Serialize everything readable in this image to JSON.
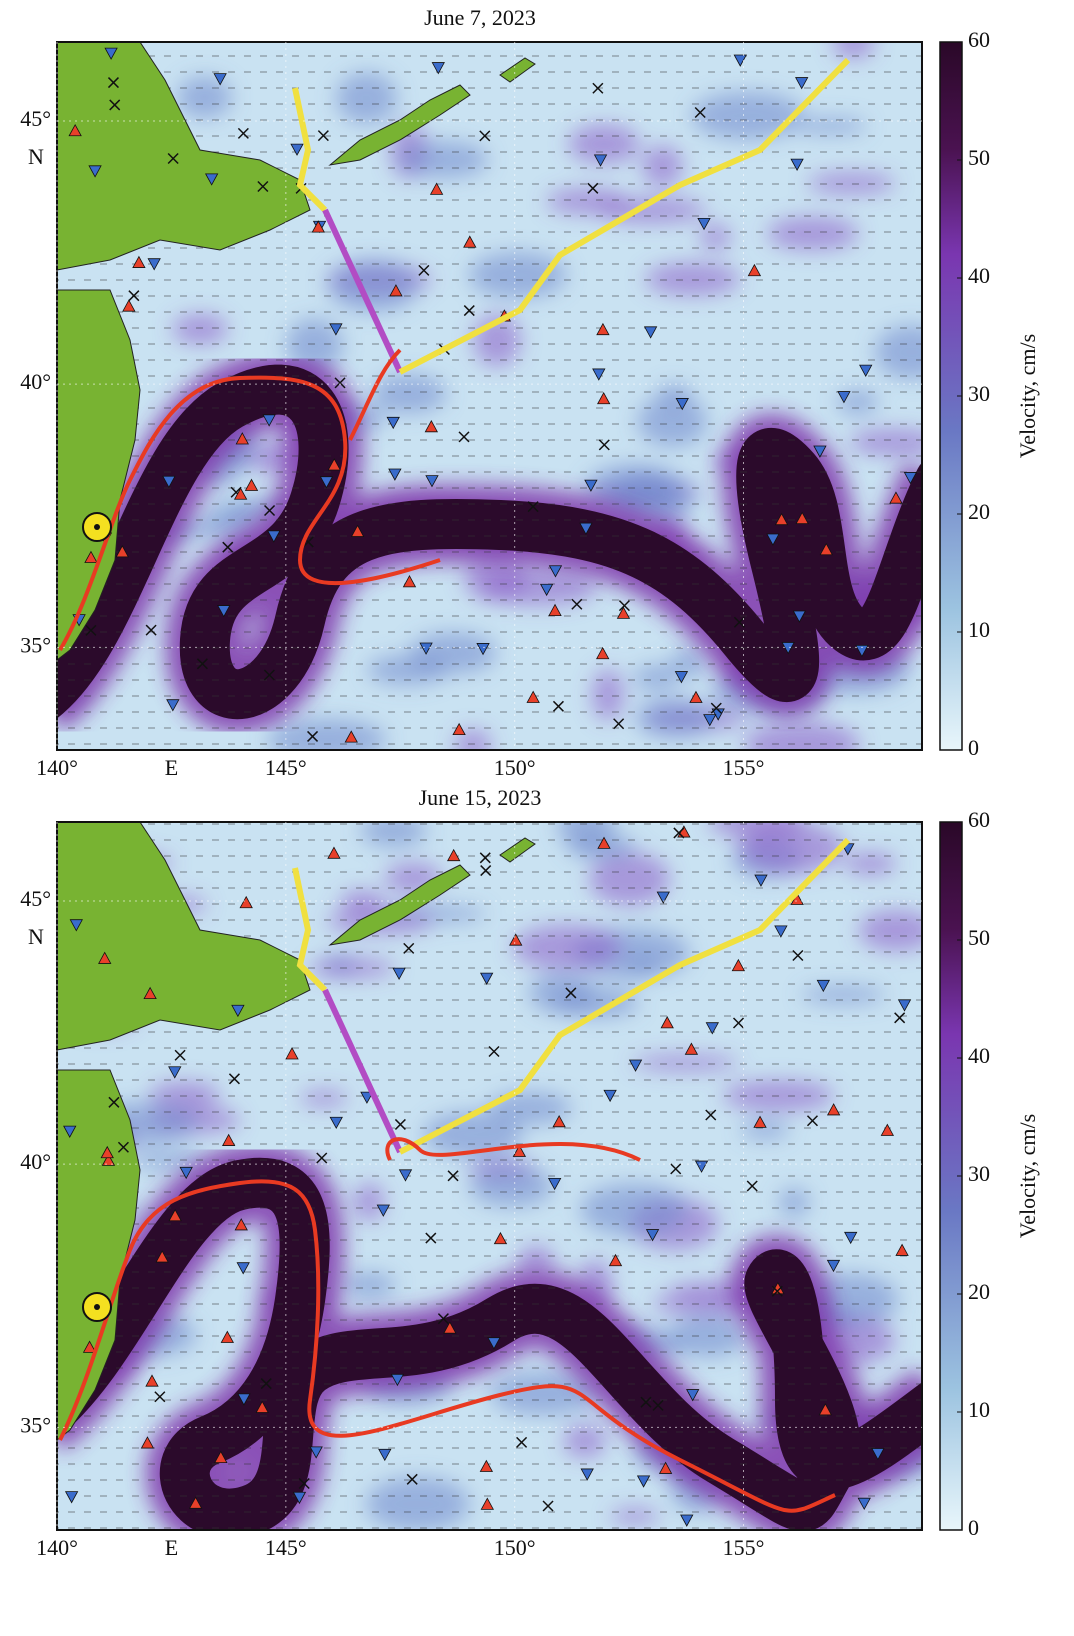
{
  "panels": [
    {
      "title": "June 7, 2023",
      "xlim": [
        140,
        158.9
      ],
      "ylim": [
        33.05,
        46.5
      ],
      "xticks": [
        {
          "value": 140,
          "label": "140°"
        },
        {
          "value": 145,
          "label": "145°"
        },
        {
          "value": 150,
          "label": "150°"
        },
        {
          "value": 155,
          "label": "155°"
        }
      ],
      "yticks": [
        {
          "value": 35,
          "label": "35°"
        },
        {
          "value": 40,
          "label": "40°"
        },
        {
          "value": 45,
          "label": "45°"
        }
      ],
      "x_unit": "E",
      "y_unit": "N",
      "colorbar": {
        "label": "Velocity, cm/s",
        "clim": [
          0,
          60
        ],
        "ticks": [
          0,
          10,
          20,
          30,
          40,
          50,
          60
        ]
      }
    },
    {
      "title": "June 15, 2023",
      "xlim": [
        140,
        158.9
      ],
      "ylim": [
        33.05,
        46.5
      ],
      "xticks": [
        {
          "value": 140,
          "label": "140°"
        },
        {
          "value": 145,
          "label": "145°"
        },
        {
          "value": 150,
          "label": "150°"
        },
        {
          "value": 155,
          "label": "155°"
        }
      ],
      "yticks": [
        {
          "value": 35,
          "label": "35°"
        },
        {
          "value": 40,
          "label": "40°"
        },
        {
          "value": 45,
          "label": "45°"
        }
      ],
      "x_unit": "E",
      "y_unit": "N",
      "colorbar": {
        "label": "Velocity, cm/s",
        "clim": [
          0,
          60
        ],
        "ticks": [
          0,
          10,
          20,
          30,
          40,
          50,
          60
        ]
      }
    }
  ]
}
